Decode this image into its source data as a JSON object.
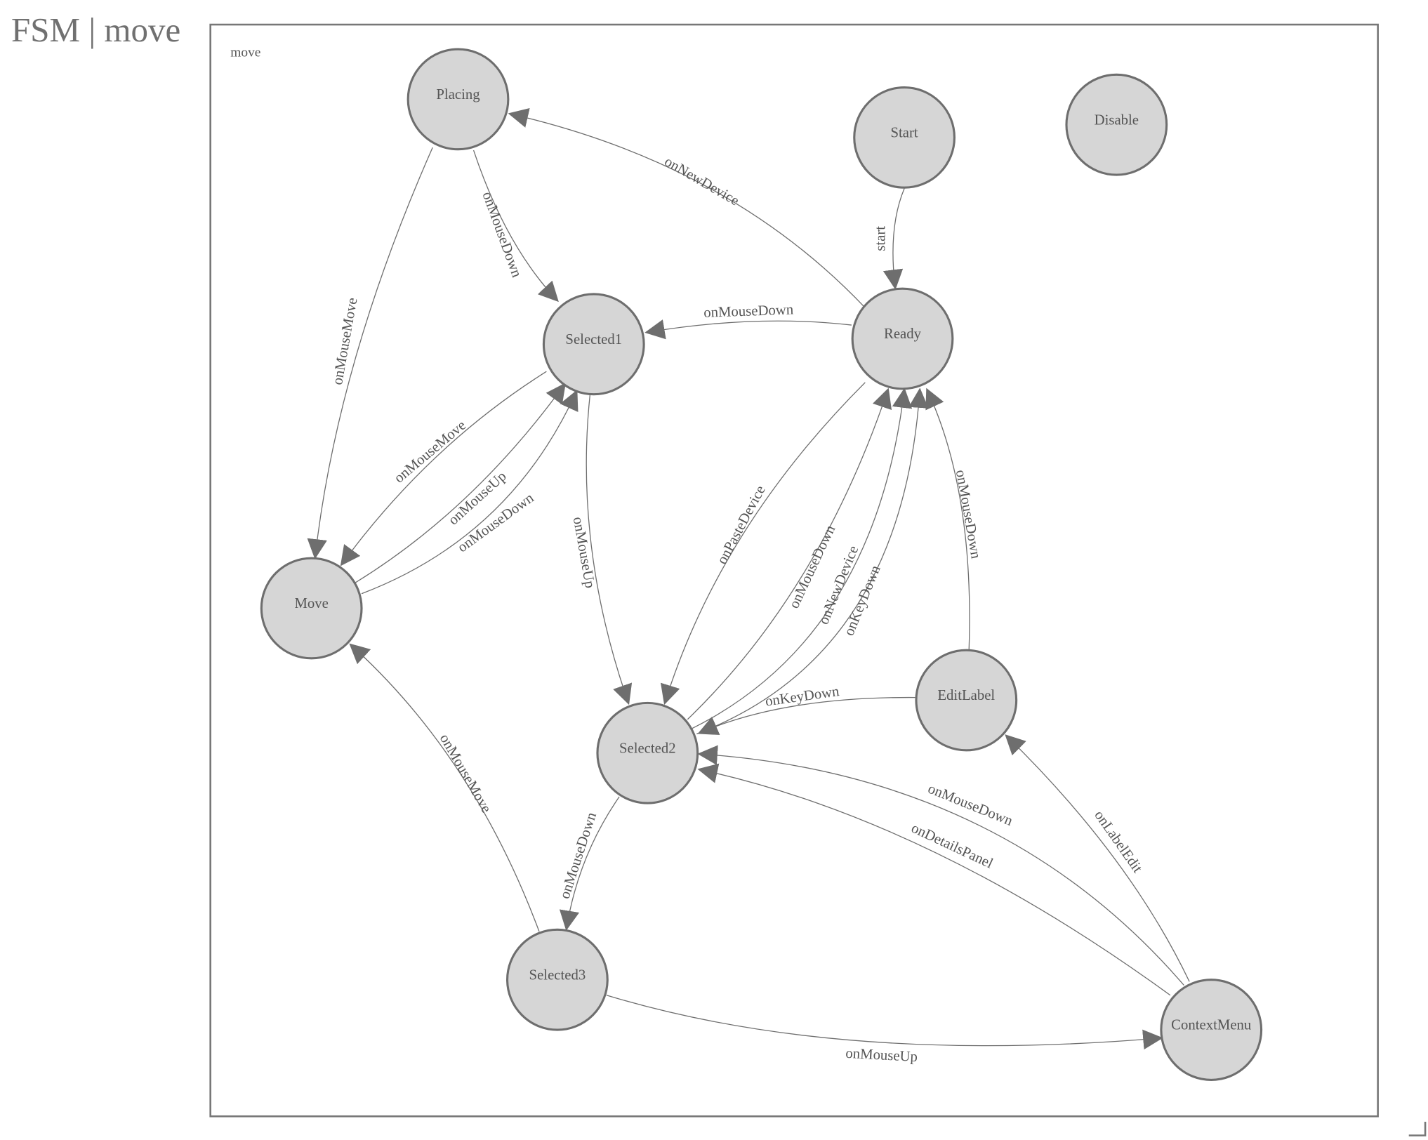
{
  "title": "FSM | move",
  "frame_label": "move",
  "colors": {
    "node_fill": "#d6d6d6",
    "stroke": "#6e6e6e",
    "text": "#555555"
  },
  "nodes": [
    {
      "id": "Placing",
      "label": "Placing"
    },
    {
      "id": "Start",
      "label": "Start"
    },
    {
      "id": "Disable",
      "label": "Disable"
    },
    {
      "id": "Selected1",
      "label": "Selected1"
    },
    {
      "id": "Ready",
      "label": "Ready"
    },
    {
      "id": "Move",
      "label": "Move"
    },
    {
      "id": "Selected2",
      "label": "Selected2"
    },
    {
      "id": "EditLabel",
      "label": "EditLabel"
    },
    {
      "id": "Selected3",
      "label": "Selected3"
    },
    {
      "id": "ContextMenu",
      "label": "ContextMenu"
    }
  ],
  "edges": [
    {
      "from": "Placing",
      "to": "Move",
      "label": "onMouseMove"
    },
    {
      "from": "Placing",
      "to": "Selected1",
      "label": "onMouseDown"
    },
    {
      "from": "Ready",
      "to": "Placing",
      "label": "onNewDevice"
    },
    {
      "from": "Start",
      "to": "Ready",
      "label": "start"
    },
    {
      "from": "Ready",
      "to": "Selected1",
      "label": "onMouseDown"
    },
    {
      "from": "Selected1",
      "to": "Move",
      "label": "onMouseMove"
    },
    {
      "from": "Move",
      "to": "Selected1",
      "label": "onMouseUp"
    },
    {
      "from": "Move",
      "to": "Selected1",
      "label": "onMouseDown"
    },
    {
      "from": "Selected1",
      "to": "Selected2",
      "label": "onMouseUp"
    },
    {
      "from": "Ready",
      "to": "Selected2",
      "label": "onPasteDevice"
    },
    {
      "from": "Selected2",
      "to": "Ready",
      "label": "onMouseDown"
    },
    {
      "from": "Selected2",
      "to": "Ready",
      "label": "onNewDevice"
    },
    {
      "from": "Selected2",
      "to": "Ready",
      "label": "onKeyDown"
    },
    {
      "from": "EditLabel",
      "to": "Ready",
      "label": "onMouseDown"
    },
    {
      "from": "EditLabel",
      "to": "Selected2",
      "label": "onKeyDown"
    },
    {
      "from": "Selected2",
      "to": "Selected3",
      "label": "onMouseDown"
    },
    {
      "from": "Selected3",
      "to": "Move",
      "label": "onMouseMove"
    },
    {
      "from": "Selected3",
      "to": "ContextMenu",
      "label": "onMouseUp"
    },
    {
      "from": "ContextMenu",
      "to": "EditLabel",
      "label": "onLabelEdit"
    },
    {
      "from": "ContextMenu",
      "to": "Selected2",
      "label": "onMouseDown"
    },
    {
      "from": "ContextMenu",
      "to": "Selected2",
      "label": "onDetailsPanel"
    }
  ]
}
